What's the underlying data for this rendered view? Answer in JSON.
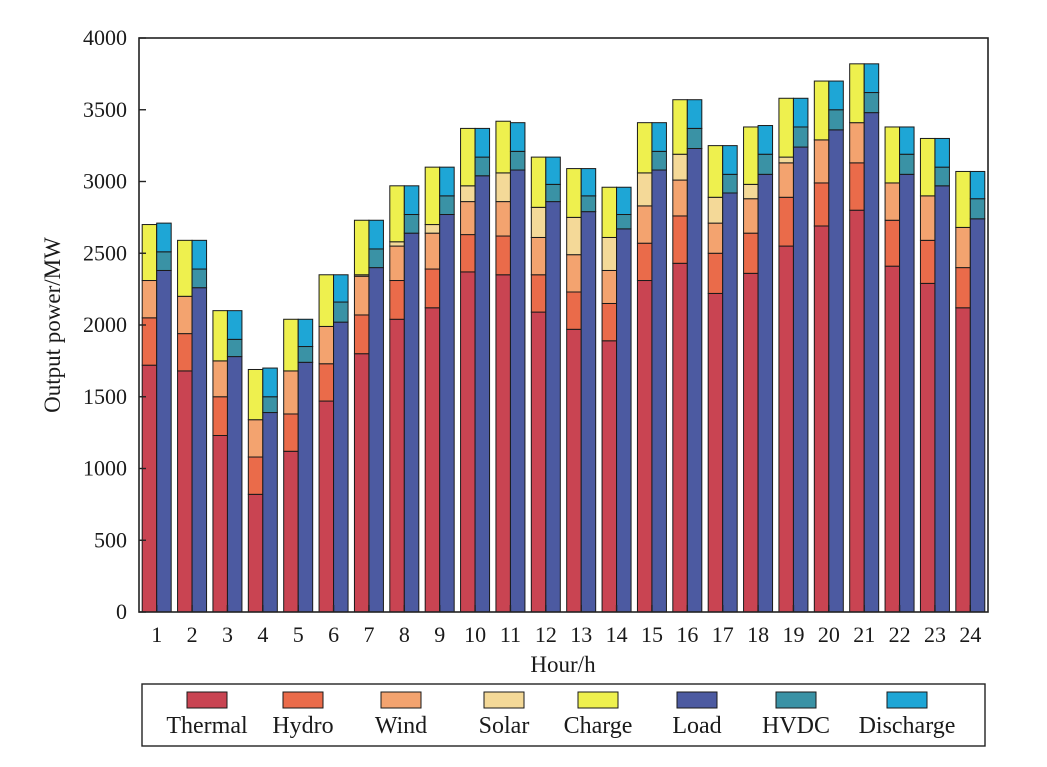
{
  "chart_data": {
    "type": "bar",
    "stacked": true,
    "xlabel": "Hour/h",
    "ylabel": "Output power/MW",
    "ylim": [
      0,
      4000
    ],
    "yticks": [
      "0",
      "500",
      "1000",
      "1500",
      "2000",
      "2500",
      "3000",
      "3500",
      "4000"
    ],
    "grid": false,
    "legend_position": "bottom",
    "categories": [
      "1",
      "2",
      "3",
      "4",
      "5",
      "6",
      "7",
      "8",
      "9",
      "10",
      "11",
      "12",
      "13",
      "14",
      "15",
      "16",
      "17",
      "18",
      "19",
      "20",
      "21",
      "22",
      "23",
      "24"
    ],
    "supply_stack": [
      {
        "name": "Thermal",
        "color": "#c94452",
        "values": [
          1720,
          1680,
          1230,
          820,
          1120,
          1470,
          1800,
          2040,
          2120,
          2370,
          2350,
          2090,
          1970,
          1890,
          2310,
          2430,
          2220,
          2360,
          2550,
          2690,
          2800,
          2410,
          2290,
          2120
        ]
      },
      {
        "name": "Hydro",
        "color": "#ea6b4a",
        "values": [
          330,
          260,
          270,
          260,
          260,
          260,
          270,
          270,
          270,
          260,
          270,
          260,
          260,
          260,
          260,
          330,
          280,
          280,
          340,
          300,
          330,
          320,
          300,
          280
        ]
      },
      {
        "name": "Wind",
        "color": "#f3a36f",
        "values": [
          260,
          260,
          250,
          260,
          300,
          260,
          270,
          240,
          250,
          230,
          240,
          260,
          260,
          230,
          260,
          250,
          210,
          240,
          240,
          300,
          280,
          260,
          310,
          280
        ]
      },
      {
        "name": "Solar",
        "color": "#f4d998",
        "values": [
          0,
          0,
          0,
          0,
          0,
          0,
          10,
          30,
          60,
          110,
          200,
          210,
          260,
          230,
          230,
          180,
          180,
          100,
          40,
          0,
          0,
          0,
          0,
          0
        ]
      },
      {
        "name": "Charge",
        "color": "#eef04e",
        "values": [
          390,
          390,
          350,
          350,
          360,
          360,
          380,
          390,
          400,
          400,
          360,
          350,
          340,
          350,
          350,
          380,
          360,
          400,
          410,
          410,
          410,
          390,
          400,
          390
        ]
      }
    ],
    "demand_stack": [
      {
        "name": "Load",
        "color": "#4c5aa1",
        "values": [
          2380,
          2260,
          1780,
          1390,
          1740,
          2020,
          2400,
          2640,
          2770,
          3040,
          3080,
          2860,
          2790,
          2670,
          3080,
          3230,
          2920,
          3050,
          3240,
          3360,
          3480,
          3050,
          2970,
          2740
        ]
      },
      {
        "name": "HVDC",
        "color": "#3a92a5",
        "values": [
          130,
          130,
          120,
          110,
          110,
          140,
          130,
          130,
          130,
          130,
          130,
          120,
          110,
          100,
          130,
          140,
          130,
          140,
          140,
          140,
          140,
          140,
          130,
          140
        ]
      },
      {
        "name": "Discharge",
        "color": "#1ea6d6",
        "values": [
          200,
          200,
          200,
          200,
          190,
          190,
          200,
          200,
          200,
          200,
          200,
          190,
          190,
          190,
          200,
          200,
          200,
          200,
          200,
          200,
          200,
          190,
          200,
          190
        ]
      }
    ],
    "legend": [
      "Thermal",
      "Hydro",
      "Wind",
      "Solar",
      "Charge",
      "Load",
      "HVDC",
      "Discharge"
    ]
  }
}
